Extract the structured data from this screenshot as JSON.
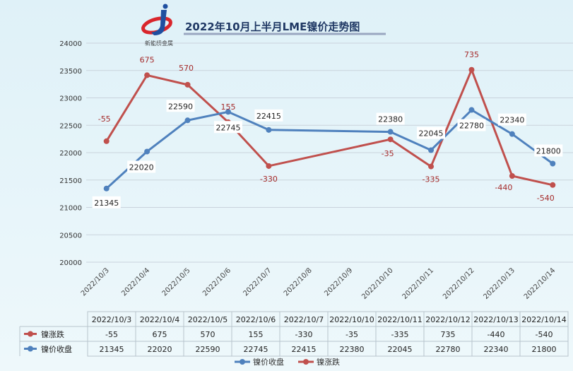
{
  "chart_data": {
    "type": "line",
    "title": "2022年10月上半月LME镍价走势图",
    "logo_text": "新能桥金属",
    "categories": [
      "2022/10/3",
      "2022/10/4",
      "2022/10/5",
      "2022/10/6",
      "2022/10/7",
      "2022/10/8",
      "2022/10/9",
      "2022/10/10",
      "2022/10/11",
      "2022/10/12",
      "2022/10/13",
      "2022/10/14"
    ],
    "ylim": [
      20000,
      24000
    ],
    "yticks": [
      "20000",
      "20500",
      "21000",
      "21500",
      "22000",
      "22500",
      "23000",
      "23500",
      "24000"
    ],
    "grid": true,
    "legend_position": "bottom",
    "series": [
      {
        "name": "镍价收盘",
        "color": "#4f81bd",
        "values": [
          21345,
          22020,
          22590,
          22745,
          22415,
          null,
          null,
          22380,
          22045,
          22780,
          22340,
          21800
        ]
      },
      {
        "name": "镍涨跌",
        "color": "#c0504d",
        "values": [
          -55,
          675,
          570,
          155,
          -330,
          null,
          null,
          -35,
          -335,
          735,
          -440,
          -540
        ]
      }
    ],
    "table": {
      "headers": [
        "2022/10/3",
        "2022/10/4",
        "2022/10/5",
        "2022/10/6",
        "2022/10/7",
        "2022/10/10",
        "2022/10/11",
        "2022/10/12",
        "2022/10/13",
        "2022/10/14"
      ],
      "rows": [
        {
          "name": "镍涨跌",
          "values": [
            "-55",
            "675",
            "570",
            "155",
            "-330",
            "-35",
            "-335",
            "735",
            "-440",
            "-540"
          ]
        },
        {
          "name": "镍价收盘",
          "values": [
            "21345",
            "22020",
            "22590",
            "22745",
            "22415",
            "22380",
            "22045",
            "22780",
            "22340",
            "21800"
          ]
        }
      ]
    },
    "legend": [
      "镍价收盘",
      "镍涨跌"
    ]
  }
}
